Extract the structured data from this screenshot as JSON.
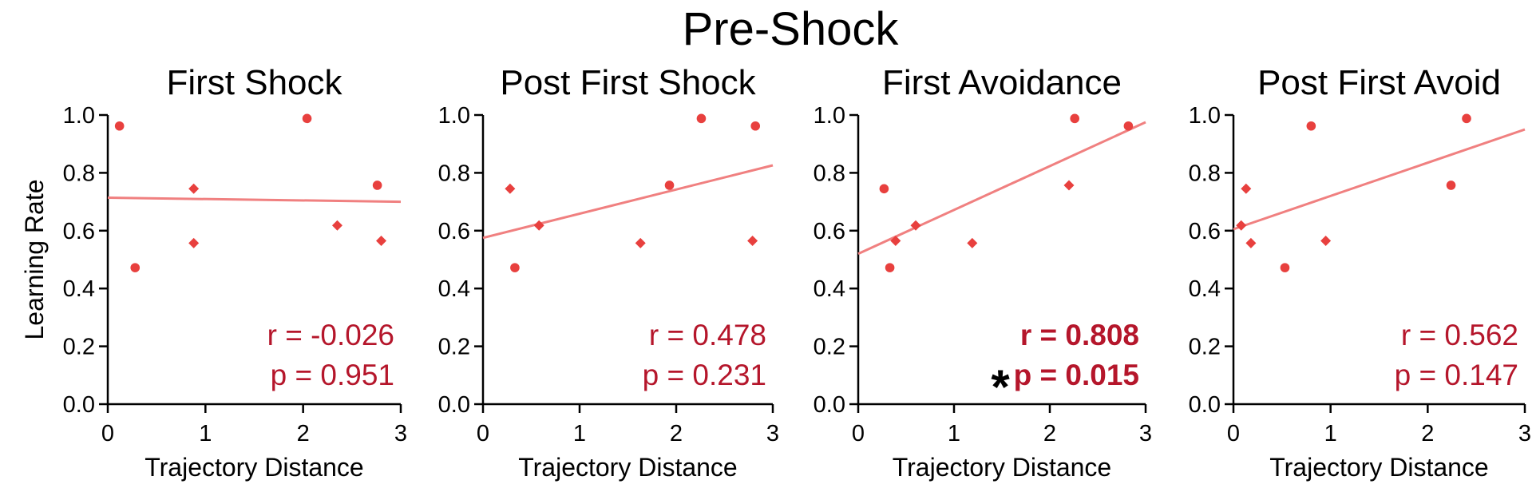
{
  "figure": {
    "title": "Pre-Shock"
  },
  "colors": {
    "point": "#e8403e",
    "fit_line": "#f08080",
    "stat_text": "#b5162b",
    "axis": "#000000"
  },
  "chart_data": [
    {
      "type": "scatter",
      "title": "First Shock",
      "xlabel": "Trajectory Distance",
      "ylabel": "Learning Rate",
      "xlim": [
        0,
        3
      ],
      "ylim": [
        0,
        1
      ],
      "xticks": [
        "0",
        "1",
        "2",
        "3"
      ],
      "yticks": [
        "0.0",
        "0.2",
        "0.4",
        "0.6",
        "0.8",
        "1.0"
      ],
      "points": [
        {
          "x": 0.12,
          "y": 0.962,
          "marker": "circle"
        },
        {
          "x": 0.28,
          "y": 0.472,
          "marker": "circle"
        },
        {
          "x": 0.88,
          "y": 0.745,
          "marker": "diamond"
        },
        {
          "x": 0.88,
          "y": 0.557,
          "marker": "diamond"
        },
        {
          "x": 2.04,
          "y": 0.988,
          "marker": "circle"
        },
        {
          "x": 2.35,
          "y": 0.618,
          "marker": "diamond"
        },
        {
          "x": 2.76,
          "y": 0.757,
          "marker": "circle"
        },
        {
          "x": 2.8,
          "y": 0.565,
          "marker": "diamond"
        }
      ],
      "fit": {
        "y_at_xmin": 0.714,
        "y_at_xmax": 0.7
      },
      "stats": {
        "r": "r = -0.026",
        "p": "p = 0.951",
        "significant": false
      }
    },
    {
      "type": "scatter",
      "title": "Post First Shock",
      "xlabel": "Trajectory Distance",
      "ylabel": "",
      "xlim": [
        0,
        3
      ],
      "ylim": [
        0,
        1
      ],
      "xticks": [
        "0",
        "1",
        "2",
        "3"
      ],
      "yticks": [
        "0.0",
        "0.2",
        "0.4",
        "0.6",
        "0.8",
        "1.0"
      ],
      "points": [
        {
          "x": 0.28,
          "y": 0.745,
          "marker": "diamond"
        },
        {
          "x": 0.33,
          "y": 0.472,
          "marker": "circle"
        },
        {
          "x": 0.58,
          "y": 0.618,
          "marker": "diamond"
        },
        {
          "x": 1.63,
          "y": 0.557,
          "marker": "diamond"
        },
        {
          "x": 1.93,
          "y": 0.757,
          "marker": "circle"
        },
        {
          "x": 2.26,
          "y": 0.988,
          "marker": "circle"
        },
        {
          "x": 2.79,
          "y": 0.565,
          "marker": "diamond"
        },
        {
          "x": 2.82,
          "y": 0.962,
          "marker": "circle"
        }
      ],
      "fit": {
        "y_at_xmin": 0.575,
        "y_at_xmax": 0.826
      },
      "stats": {
        "r": "r = 0.478",
        "p": "p = 0.231",
        "significant": false
      }
    },
    {
      "type": "scatter",
      "title": "First Avoidance",
      "xlabel": "Trajectory Distance",
      "ylabel": "",
      "xlim": [
        0,
        3
      ],
      "ylim": [
        0,
        1
      ],
      "xticks": [
        "0",
        "1",
        "2",
        "3"
      ],
      "yticks": [
        "0.0",
        "0.2",
        "0.4",
        "0.6",
        "0.8",
        "1.0"
      ],
      "points": [
        {
          "x": 0.27,
          "y": 0.745,
          "marker": "circle"
        },
        {
          "x": 0.33,
          "y": 0.472,
          "marker": "circle"
        },
        {
          "x": 0.39,
          "y": 0.565,
          "marker": "diamond"
        },
        {
          "x": 0.6,
          "y": 0.618,
          "marker": "diamond"
        },
        {
          "x": 1.19,
          "y": 0.557,
          "marker": "diamond"
        },
        {
          "x": 2.2,
          "y": 0.757,
          "marker": "diamond"
        },
        {
          "x": 2.26,
          "y": 0.988,
          "marker": "circle"
        },
        {
          "x": 2.82,
          "y": 0.962,
          "marker": "circle"
        }
      ],
      "fit": {
        "y_at_xmin": 0.52,
        "y_at_xmax": 0.975
      },
      "stats": {
        "r": "r = 0.808",
        "p": "p = 0.015",
        "significant": true,
        "marker": "*"
      }
    },
    {
      "type": "scatter",
      "title": "Post First Avoid",
      "xlabel": "Trajectory Distance",
      "ylabel": "",
      "xlim": [
        0,
        3
      ],
      "ylim": [
        0,
        1
      ],
      "xticks": [
        "0",
        "1",
        "2",
        "3"
      ],
      "yticks": [
        "0.0",
        "0.2",
        "0.4",
        "0.6",
        "0.8",
        "1.0"
      ],
      "points": [
        {
          "x": 0.08,
          "y": 0.618,
          "marker": "diamond"
        },
        {
          "x": 0.13,
          "y": 0.745,
          "marker": "diamond"
        },
        {
          "x": 0.18,
          "y": 0.557,
          "marker": "diamond"
        },
        {
          "x": 0.53,
          "y": 0.472,
          "marker": "circle"
        },
        {
          "x": 0.8,
          "y": 0.962,
          "marker": "circle"
        },
        {
          "x": 0.95,
          "y": 0.565,
          "marker": "diamond"
        },
        {
          "x": 2.24,
          "y": 0.757,
          "marker": "circle"
        },
        {
          "x": 2.4,
          "y": 0.988,
          "marker": "circle"
        }
      ],
      "fit": {
        "y_at_xmin": 0.605,
        "y_at_xmax": 0.95
      },
      "stats": {
        "r": "r = 0.562",
        "p": "p = 0.147",
        "significant": false
      }
    }
  ]
}
